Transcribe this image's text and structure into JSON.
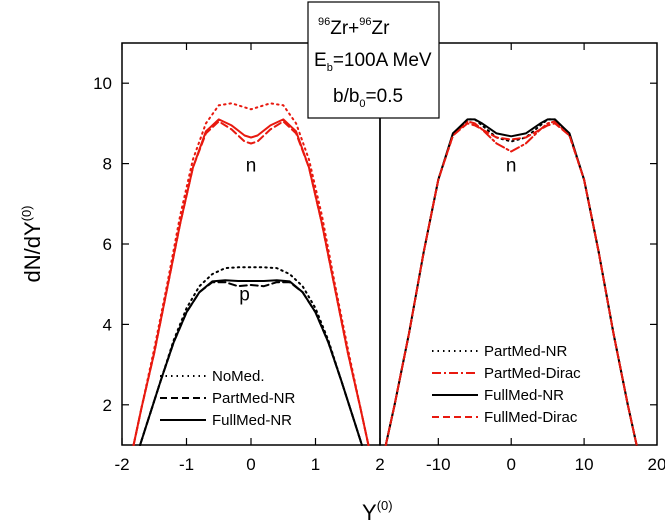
{
  "info_box": {
    "line1_a_sup": "96",
    "line1_a": "Zr+",
    "line1_b_sup": "96",
    "line1_b": "Zr",
    "line2_main": "E",
    "line2_sub": "b",
    "line2_rest": "=100A MeV",
    "line3_main": "b/b",
    "line3_sub": "0",
    "line3_rest": "=0.5"
  },
  "y_axis_title": {
    "main": "dN/dY",
    "sup": "(0)"
  },
  "x_axis_title": {
    "main": "Y",
    "sup": "(0)"
  },
  "colors": {
    "black": "#000000",
    "red": "#e8190f"
  },
  "chart_data": [
    {
      "type": "line",
      "panel": "left",
      "xlim": [
        -2,
        2
      ],
      "ylim": [
        1,
        11
      ],
      "xticks": [
        -2,
        -1,
        0,
        1,
        2
      ],
      "xtick_labels": [
        "-2",
        "-1",
        "0",
        "1",
        "2"
      ],
      "yticks": [
        2,
        4,
        6,
        8,
        10
      ],
      "ytick_labels": [
        "2",
        "4",
        "6",
        "8",
        "10"
      ],
      "grid": false,
      "legend_position": "bottom-left",
      "labels": [
        {
          "text": "n",
          "x": 0.0,
          "y": 7.8
        },
        {
          "text": "p",
          "x": -0.1,
          "y": 4.6
        }
      ],
      "legend": [
        {
          "label": "NoMed.",
          "style": "dotted",
          "color": "#000000"
        },
        {
          "label": "PartMed-NR",
          "style": "dashed",
          "color": "#000000"
        },
        {
          "label": "FullMed-NR",
          "style": "solid",
          "color": "#000000"
        }
      ],
      "series": [
        {
          "group": "n",
          "style": "dotted",
          "color": "#e8190f",
          "x": [
            -1.82,
            -1.7,
            -1.5,
            -1.3,
            -1.1,
            -0.9,
            -0.7,
            -0.5,
            -0.3,
            -0.1,
            0,
            0.1,
            0.3,
            0.5,
            0.7,
            0.9,
            1.1,
            1.3,
            1.5,
            1.7,
            1.82
          ],
          "y": [
            1.0,
            1.9,
            3.4,
            5.0,
            6.7,
            8.1,
            9.0,
            9.45,
            9.5,
            9.4,
            9.35,
            9.4,
            9.5,
            9.45,
            9.0,
            8.1,
            6.7,
            5.0,
            3.4,
            1.9,
            1.0
          ]
        },
        {
          "group": "n",
          "style": "dashed",
          "color": "#e8190f",
          "x": [
            -1.82,
            -1.7,
            -1.5,
            -1.3,
            -1.1,
            -0.9,
            -0.7,
            -0.5,
            -0.3,
            -0.1,
            0,
            0.1,
            0.3,
            0.5,
            0.7,
            0.9,
            1.1,
            1.3,
            1.5,
            1.7,
            1.82
          ],
          "y": [
            1.0,
            1.9,
            3.3,
            4.9,
            6.5,
            7.9,
            8.75,
            9.05,
            8.85,
            8.55,
            8.5,
            8.55,
            8.85,
            9.05,
            8.75,
            7.9,
            6.5,
            4.9,
            3.3,
            1.9,
            1.0
          ]
        },
        {
          "group": "n",
          "style": "solid",
          "color": "#e8190f",
          "x": [
            -1.82,
            -1.7,
            -1.5,
            -1.3,
            -1.1,
            -0.9,
            -0.7,
            -0.5,
            -0.3,
            -0.1,
            0,
            0.1,
            0.3,
            0.5,
            0.7,
            0.9,
            1.1,
            1.3,
            1.5,
            1.7,
            1.82
          ],
          "y": [
            1.0,
            1.9,
            3.3,
            4.9,
            6.5,
            7.9,
            8.8,
            9.1,
            8.95,
            8.7,
            8.65,
            8.7,
            8.95,
            9.1,
            8.8,
            7.9,
            6.5,
            4.9,
            3.3,
            1.9,
            1.0
          ]
        },
        {
          "group": "p",
          "style": "dotted",
          "color": "#000000",
          "x": [
            -1.72,
            -1.6,
            -1.4,
            -1.2,
            -1.0,
            -0.8,
            -0.6,
            -0.4,
            -0.2,
            0,
            0.2,
            0.4,
            0.6,
            0.8,
            1.0,
            1.2,
            1.4,
            1.6,
            1.72
          ],
          "y": [
            1.0,
            1.6,
            2.6,
            3.6,
            4.4,
            4.95,
            5.25,
            5.4,
            5.42,
            5.42,
            5.42,
            5.4,
            5.25,
            4.95,
            4.4,
            3.6,
            2.6,
            1.6,
            1.0
          ]
        },
        {
          "group": "p",
          "style": "dashed",
          "color": "#000000",
          "x": [
            -1.72,
            -1.6,
            -1.4,
            -1.2,
            -1.0,
            -0.8,
            -0.6,
            -0.4,
            -0.2,
            0,
            0.2,
            0.4,
            0.6,
            0.8,
            1.0,
            1.2,
            1.4,
            1.6,
            1.72
          ],
          "y": [
            1.0,
            1.6,
            2.6,
            3.55,
            4.3,
            4.8,
            5.05,
            5.05,
            4.95,
            4.98,
            4.95,
            5.05,
            5.05,
            4.8,
            4.3,
            3.55,
            2.6,
            1.6,
            1.0
          ]
        },
        {
          "group": "p",
          "style": "solid",
          "color": "#000000",
          "x": [
            -1.72,
            -1.6,
            -1.4,
            -1.2,
            -1.0,
            -0.8,
            -0.6,
            -0.4,
            -0.2,
            0,
            0.2,
            0.4,
            0.6,
            0.8,
            1.0,
            1.2,
            1.4,
            1.6,
            1.72
          ],
          "y": [
            1.0,
            1.6,
            2.6,
            3.55,
            4.3,
            4.8,
            5.07,
            5.1,
            5.08,
            5.08,
            5.08,
            5.1,
            5.07,
            4.8,
            4.3,
            3.55,
            2.6,
            1.6,
            1.0
          ]
        }
      ]
    },
    {
      "type": "line",
      "panel": "right",
      "xlim": [
        -18,
        20
      ],
      "ylim": [
        1,
        11
      ],
      "xticks": [
        -10,
        0,
        10,
        20
      ],
      "xtick_labels": [
        "-10",
        "0",
        "10",
        "20"
      ],
      "grid": false,
      "legend_position": "bottom-right",
      "labels": [
        {
          "text": "n",
          "x": 0.0,
          "y": 7.8
        }
      ],
      "legend": [
        {
          "label": "PartMed-NR",
          "style": "dotted",
          "color": "#000000"
        },
        {
          "label": "PartMed-Dirac",
          "style": "dashdot",
          "color": "#e8190f"
        },
        {
          "label": "FullMed-NR",
          "style": "solid",
          "color": "#000000"
        },
        {
          "label": "FullMed-Dirac",
          "style": "dashed",
          "color": "#e8190f"
        }
      ],
      "series": [
        {
          "name": "PartMed-NR",
          "style": "dotted",
          "color": "#000000",
          "x": [
            -17.2,
            -16,
            -14,
            -12,
            -10,
            -8,
            -6,
            -5,
            -4,
            -2,
            0,
            2,
            4,
            5,
            6,
            8,
            10,
            12,
            14,
            16,
            17.2
          ],
          "y": [
            1.0,
            2.0,
            3.8,
            5.8,
            7.6,
            8.7,
            9.1,
            9.1,
            8.95,
            8.65,
            8.55,
            8.65,
            8.95,
            9.1,
            9.1,
            8.7,
            7.6,
            5.8,
            3.8,
            2.0,
            1.0
          ]
        },
        {
          "name": "PartMed-Dirac",
          "style": "dashdot",
          "color": "#e8190f",
          "x": [
            -17.2,
            -16,
            -14,
            -12,
            -10,
            -8,
            -6,
            -5,
            -4,
            -2,
            0,
            2,
            4,
            5,
            6,
            8,
            10,
            12,
            14,
            16,
            17.2
          ],
          "y": [
            1.0,
            2.0,
            3.8,
            5.8,
            7.6,
            8.7,
            9.05,
            9.0,
            8.85,
            8.5,
            8.3,
            8.5,
            8.85,
            9.0,
            9.05,
            8.7,
            7.6,
            5.8,
            3.8,
            2.0,
            1.0
          ]
        },
        {
          "name": "FullMed-NR",
          "style": "solid",
          "color": "#000000",
          "x": [
            -17.2,
            -16,
            -14,
            -12,
            -10,
            -8,
            -6,
            -5,
            -4,
            -2,
            0,
            2,
            4,
            5,
            6,
            8,
            10,
            12,
            14,
            16,
            17.2
          ],
          "y": [
            1.0,
            2.0,
            3.8,
            5.8,
            7.6,
            8.75,
            9.1,
            9.1,
            9.0,
            8.75,
            8.68,
            8.75,
            9.0,
            9.1,
            9.1,
            8.75,
            7.6,
            5.8,
            3.8,
            2.0,
            1.0
          ]
        },
        {
          "name": "FullMed-Dirac",
          "style": "dashed",
          "color": "#e8190f",
          "x": [
            -17.2,
            -16,
            -14,
            -12,
            -10,
            -8,
            -6,
            -5,
            -4,
            -2,
            0,
            2,
            4,
            5,
            6,
            8,
            10,
            12,
            14,
            16,
            17.2
          ],
          "y": [
            1.0,
            2.0,
            3.8,
            5.8,
            7.6,
            8.7,
            9.0,
            8.95,
            8.85,
            8.65,
            8.6,
            8.65,
            8.85,
            8.95,
            9.0,
            8.7,
            7.6,
            5.8,
            3.8,
            2.0,
            1.0
          ]
        }
      ]
    }
  ]
}
